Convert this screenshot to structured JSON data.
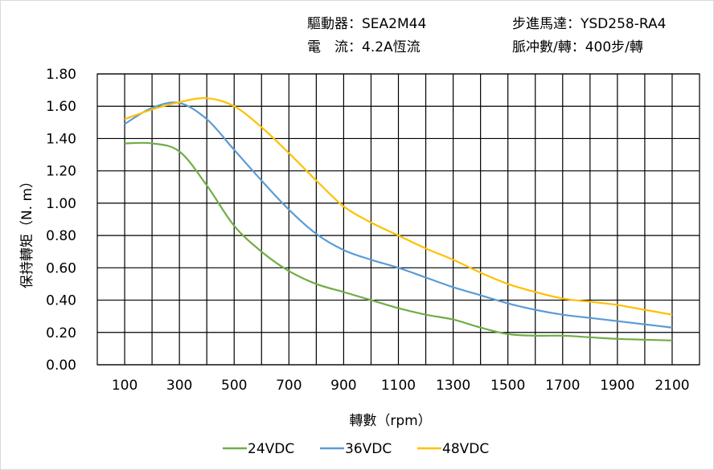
{
  "info": {
    "driver": "驅動器：SEA2M44",
    "motor": "步進馬達：YSD258-RA4",
    "current": "電　流：4.2A恆流",
    "pulses": "脈冲數/轉：400步/轉"
  },
  "chart_data": {
    "type": "line",
    "xlabel": "轉數（rpm）",
    "ylabel": "保持轉矩（N. m）",
    "xlim": [
      0,
      2200
    ],
    "ylim": [
      0,
      1.8
    ],
    "grid": true,
    "legend_position": "bottom",
    "x_ticks": [
      "100",
      "300",
      "500",
      "700",
      "900",
      "1100",
      "1300",
      "1500",
      "1700",
      "1900",
      "2100"
    ],
    "y_ticks": [
      "0.00",
      "0.20",
      "0.40",
      "0.60",
      "0.80",
      "1.00",
      "1.20",
      "1.40",
      "1.60",
      "1.80"
    ],
    "x": [
      100,
      200,
      300,
      400,
      500,
      600,
      700,
      800,
      900,
      1000,
      1100,
      1200,
      1300,
      1400,
      1500,
      1600,
      1700,
      1800,
      1900,
      2000,
      2100
    ],
    "series": [
      {
        "name": "24VDC",
        "color": "#70AD47",
        "values": [
          1.37,
          1.37,
          1.32,
          1.11,
          0.86,
          0.7,
          0.58,
          0.5,
          0.45,
          0.4,
          0.35,
          0.31,
          0.28,
          0.23,
          0.19,
          0.18,
          0.18,
          0.17,
          0.16,
          0.155,
          0.15
        ]
      },
      {
        "name": "36VDC",
        "color": "#5B9BD5",
        "values": [
          1.49,
          1.59,
          1.62,
          1.52,
          1.33,
          1.14,
          0.96,
          0.81,
          0.71,
          0.65,
          0.6,
          0.54,
          0.48,
          0.43,
          0.38,
          0.34,
          0.31,
          0.29,
          0.27,
          0.25,
          0.23
        ]
      },
      {
        "name": "48VDC",
        "color": "#FFC000",
        "values": [
          1.52,
          1.58,
          1.625,
          1.65,
          1.6,
          1.47,
          1.31,
          1.14,
          0.98,
          0.88,
          0.8,
          0.72,
          0.65,
          0.57,
          0.5,
          0.45,
          0.41,
          0.39,
          0.37,
          0.34,
          0.31
        ]
      }
    ]
  }
}
